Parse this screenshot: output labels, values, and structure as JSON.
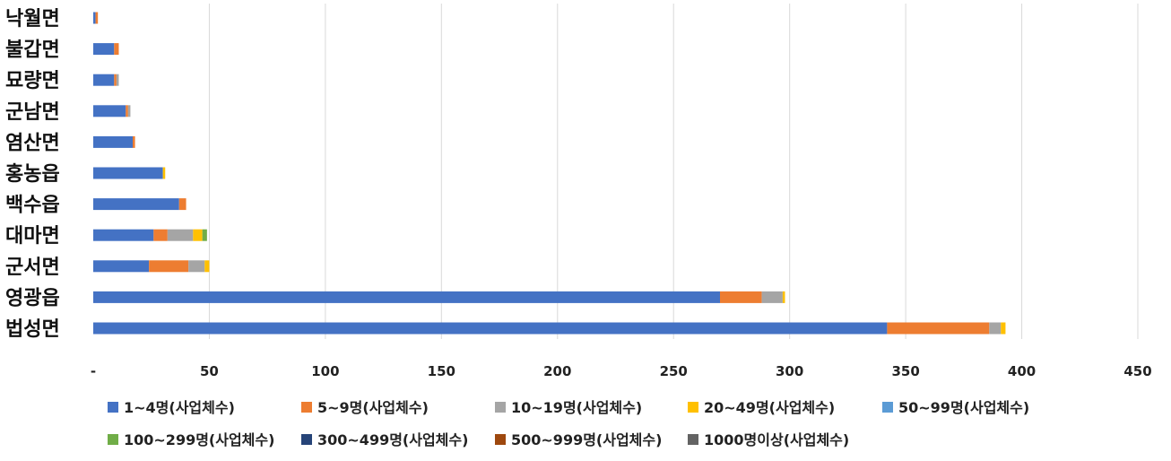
{
  "chart_data": {
    "type": "bar",
    "orientation": "horizontal",
    "stacked": true,
    "categories": [
      "낙월면",
      "불갑면",
      "묘량면",
      "군남면",
      "염산면",
      "홍농읍",
      "백수읍",
      "대마면",
      "군서면",
      "영광읍",
      "법성면"
    ],
    "series": [
      {
        "name": "1~4명(사업체수)",
        "color": "#4472c4",
        "values": [
          1,
          9,
          9,
          14,
          17,
          30,
          37,
          26,
          24,
          270,
          342
        ]
      },
      {
        "name": "5~9명(사업체수)",
        "color": "#ed7d31",
        "values": [
          1,
          2,
          1,
          1,
          1,
          0,
          3,
          6,
          17,
          18,
          44
        ]
      },
      {
        "name": "10~19명(사업체수)",
        "color": "#a5a5a5",
        "values": [
          0,
          0,
          1,
          1,
          0,
          0,
          0,
          11,
          7,
          9,
          5
        ]
      },
      {
        "name": "20~49명(사업체수)",
        "color": "#ffc000",
        "values": [
          0,
          0,
          0,
          0,
          0,
          1,
          0,
          4,
          2,
          1,
          2
        ]
      },
      {
        "name": "50~99명(사업체수)",
        "color": "#5b9bd5",
        "values": [
          0,
          0,
          0,
          0,
          0,
          0,
          0,
          0,
          0,
          0,
          0
        ]
      },
      {
        "name": "100~299명(사업체수)",
        "color": "#70ad47",
        "values": [
          0,
          0,
          0,
          0,
          0,
          0,
          0,
          2,
          0,
          0,
          0
        ]
      },
      {
        "name": "300~499명(사업체수)",
        "color": "#264478",
        "values": [
          0,
          0,
          0,
          0,
          0,
          0,
          0,
          0,
          0,
          0,
          0
        ]
      },
      {
        "name": "500~999명(사업체수)",
        "color": "#9e480e",
        "values": [
          0,
          0,
          0,
          0,
          0,
          0,
          0,
          0,
          0,
          0,
          0
        ]
      },
      {
        "name": "1000명이상(사업체수)",
        "color": "#636363",
        "values": [
          0,
          0,
          0,
          0,
          0,
          0,
          0,
          0,
          0,
          0,
          0
        ]
      }
    ],
    "x_ticks": [
      0,
      50,
      100,
      150,
      200,
      250,
      300,
      350,
      400,
      450
    ],
    "x_tick_labels": [
      "-",
      "50",
      "100",
      "150",
      "200",
      "250",
      "300",
      "350",
      "400",
      "450"
    ],
    "xlim": [
      0,
      450
    ],
    "grid": "vertical",
    "legend": "bottom",
    "title": "",
    "xlabel": "",
    "ylabel": ""
  }
}
